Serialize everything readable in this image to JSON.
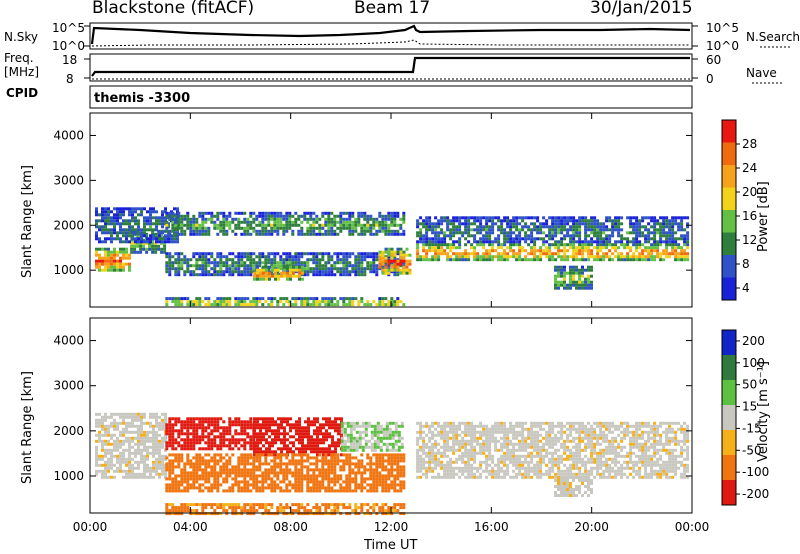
{
  "header": {
    "site": "Blackstone (fitACF)",
    "beam": "Beam 17",
    "date": "30/Jan/2015"
  },
  "top_panels": {
    "nsky_label": "N.Sky",
    "nsky_ticks": [
      "10^5",
      "10^0"
    ],
    "nsearch_label": "N.Search",
    "nsearch_ticks": [
      "10^5",
      "10^0"
    ],
    "freq_label": "Freq.",
    "freq_unit": "[MHz]",
    "freq_ticks": [
      "18",
      "8"
    ],
    "nave_label": "Nave",
    "nave_ticks": [
      "60",
      "0"
    ],
    "cpid_label": "CPID",
    "cpid_value": "themis -3300"
  },
  "colors": {
    "power": [
      "#1a22d8",
      "#2f52c8",
      "#2e7f3e",
      "#64c044",
      "#f2d21a",
      "#f6a21a",
      "#f06a10",
      "#e81810"
    ],
    "velocity": [
      "#1024c8",
      "#2f7a3c",
      "#5cc040",
      "#c8c8c0",
      "#f6b018",
      "#f07410",
      "#e01a10"
    ]
  },
  "chart_data": [
    {
      "type": "heatmap",
      "panel": "power",
      "ylabel": "Slant Range [km]",
      "ylim": [
        180,
        4500
      ],
      "xlim_hours": [
        0,
        24
      ],
      "y_ticks": [
        "4000",
        "3000",
        "2000",
        "1000"
      ],
      "x_ticks": [
        "00:00",
        "04:00",
        "08:00",
        "12:00",
        "16:00",
        "20:00",
        "00:00"
      ],
      "colorbar_label": "Power [dB]",
      "colorbar_ticks": [
        "28",
        "24",
        "20",
        "16",
        "12",
        "8",
        "4"
      ],
      "colorbar_range": [
        0,
        30
      ],
      "bands": [
        {
          "x": [
            0.2,
            1.6
          ],
          "range": [
            1000,
            1500
          ],
          "level": 26
        },
        {
          "x": [
            1.6,
            3.0
          ],
          "range": [
            1400,
            1900
          ],
          "level": 14
        },
        {
          "x": [
            0.2,
            3.5
          ],
          "range": [
            1600,
            2400
          ],
          "level": 8
        },
        {
          "x": [
            3.0,
            12.5
          ],
          "range": [
            1800,
            2300
          ],
          "level": 12
        },
        {
          "x": [
            3.0,
            12.5
          ],
          "range": [
            900,
            1400
          ],
          "level": 10
        },
        {
          "x": [
            6.5,
            8.5
          ],
          "range": [
            800,
            1100
          ],
          "level": 24
        },
        {
          "x": [
            11.5,
            12.8
          ],
          "range": [
            900,
            1500
          ],
          "level": 26
        },
        {
          "x": [
            3.0,
            12.5
          ],
          "range": [
            200,
            400
          ],
          "level": 18
        },
        {
          "x": [
            13.0,
            23.8
          ],
          "range": [
            1250,
            1600
          ],
          "level": 24
        },
        {
          "x": [
            13.0,
            23.8
          ],
          "range": [
            1600,
            2200
          ],
          "level": 9
        },
        {
          "x": [
            18.5,
            20.0
          ],
          "range": [
            600,
            1100
          ],
          "level": 14
        }
      ]
    },
    {
      "type": "heatmap",
      "panel": "velocity",
      "ylabel": "Slant Range [km]",
      "ylim": [
        180,
        4500
      ],
      "xlim_hours": [
        0,
        24
      ],
      "y_ticks": [
        "4000",
        "3000",
        "2000",
        "1000"
      ],
      "x_ticks": [
        "00:00",
        "04:00",
        "08:00",
        "12:00",
        "16:00",
        "20:00",
        "00:00"
      ],
      "xlabel": "Time UT",
      "colorbar_label": "Velocity [m s⁻¹]",
      "colorbar_ticks": [
        "200",
        "100",
        "50",
        "15",
        "-15",
        "-50",
        "-100",
        "-200"
      ],
      "colorbar_range": [
        -250,
        250
      ],
      "bands": [
        {
          "x": [
            0.2,
            3.0
          ],
          "range": [
            1000,
            2400
          ],
          "velocity": 0
        },
        {
          "x": [
            3.0,
            6.5
          ],
          "range": [
            1600,
            2300
          ],
          "velocity": -200
        },
        {
          "x": [
            6.5,
            10.0
          ],
          "range": [
            1500,
            2300
          ],
          "velocity": -120
        },
        {
          "x": [
            3.0,
            12.5
          ],
          "range": [
            700,
            1500
          ],
          "velocity": -70
        },
        {
          "x": [
            10.0,
            12.5
          ],
          "range": [
            1600,
            2200
          ],
          "velocity": 30
        },
        {
          "x": [
            3.0,
            12.5
          ],
          "range": [
            200,
            400
          ],
          "velocity": -60
        },
        {
          "x": [
            13.0,
            23.8
          ],
          "range": [
            1000,
            2200
          ],
          "velocity": 0
        },
        {
          "x": [
            18.5,
            20.0
          ],
          "range": [
            600,
            1000
          ],
          "velocity": 0
        }
      ]
    }
  ]
}
